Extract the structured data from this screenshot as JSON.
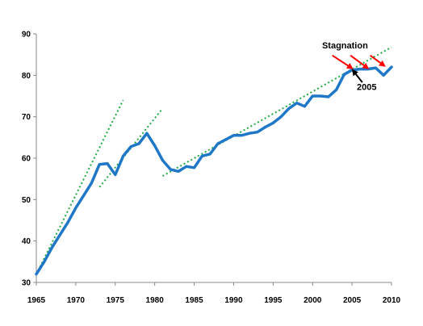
{
  "chart_data": {
    "type": "line",
    "title": "",
    "xlabel": "",
    "ylabel": "",
    "xlim": [
      1965,
      2010
    ],
    "ylim": [
      30,
      90
    ],
    "x_ticks": [
      "1965",
      "1970",
      "1975",
      "1980",
      "1985",
      "1990",
      "1995",
      "2000",
      "2005",
      "2010"
    ],
    "y_ticks": [
      "30",
      "40",
      "50",
      "60",
      "70",
      "80",
      "90"
    ],
    "grid": false,
    "legend": "none",
    "series": [
      {
        "color": "#1f77c8",
        "x": [
          1965,
          1966,
          1967,
          1968,
          1969,
          1970,
          1971,
          1972,
          1973,
          1974,
          1975,
          1976,
          1977,
          1978,
          1979,
          1980,
          1981,
          1982,
          1983,
          1984,
          1985,
          1986,
          1987,
          1988,
          1989,
          1990,
          1991,
          1992,
          1993,
          1994,
          1995,
          1996,
          1997,
          1998,
          1999,
          2000,
          2001,
          2002,
          2003,
          2004,
          2005,
          2006,
          2007,
          2008,
          2009,
          2010
        ],
        "y": [
          32,
          35,
          38.5,
          41.5,
          44.5,
          48,
          51,
          54,
          58.5,
          58.7,
          56,
          60.5,
          62.8,
          63.5,
          66,
          63,
          59.5,
          57.3,
          56.8,
          58,
          57.7,
          60.5,
          61,
          63.5,
          64.5,
          65.5,
          65.5,
          66,
          66.3,
          67.5,
          68.5,
          70,
          72,
          73.3,
          72.5,
          75,
          75,
          74.8,
          76.5,
          80.2,
          81.3,
          81.5,
          81.5,
          81.8,
          80,
          82
        ]
      }
    ],
    "trend_lines": [
      {
        "color": "#22aa44",
        "x": [
          1965,
          1976
        ],
        "y": [
          32,
          74
        ]
      },
      {
        "color": "#22aa44",
        "x": [
          1973,
          1981
        ],
        "y": [
          53,
          72
        ]
      },
      {
        "color": "#22aa44",
        "x": [
          1981,
          2010
        ],
        "y": [
          55.7,
          86.8
        ]
      }
    ],
    "annotations": [
      {
        "text": "Stagnation",
        "color": "#ff0000",
        "label_x": 2001.2,
        "label_y": 86.5,
        "arrows": [
          {
            "from": [
              2002.5,
              84.8
            ],
            "to": [
              2005,
              81.7
            ]
          },
          {
            "from": [
              2004.8,
              84.8
            ],
            "to": [
              2007,
              81.7
            ]
          },
          {
            "from": [
              2007.3,
              84.8
            ],
            "to": [
              2009.1,
              82.3
            ]
          }
        ]
      },
      {
        "text": "2005",
        "color": "#000000",
        "label_x": 2005.6,
        "label_y": 76.5,
        "arrows": [
          {
            "from": [
              2006.3,
              78.3
            ],
            "to": [
              2005.1,
              81.2
            ]
          }
        ]
      }
    ]
  }
}
